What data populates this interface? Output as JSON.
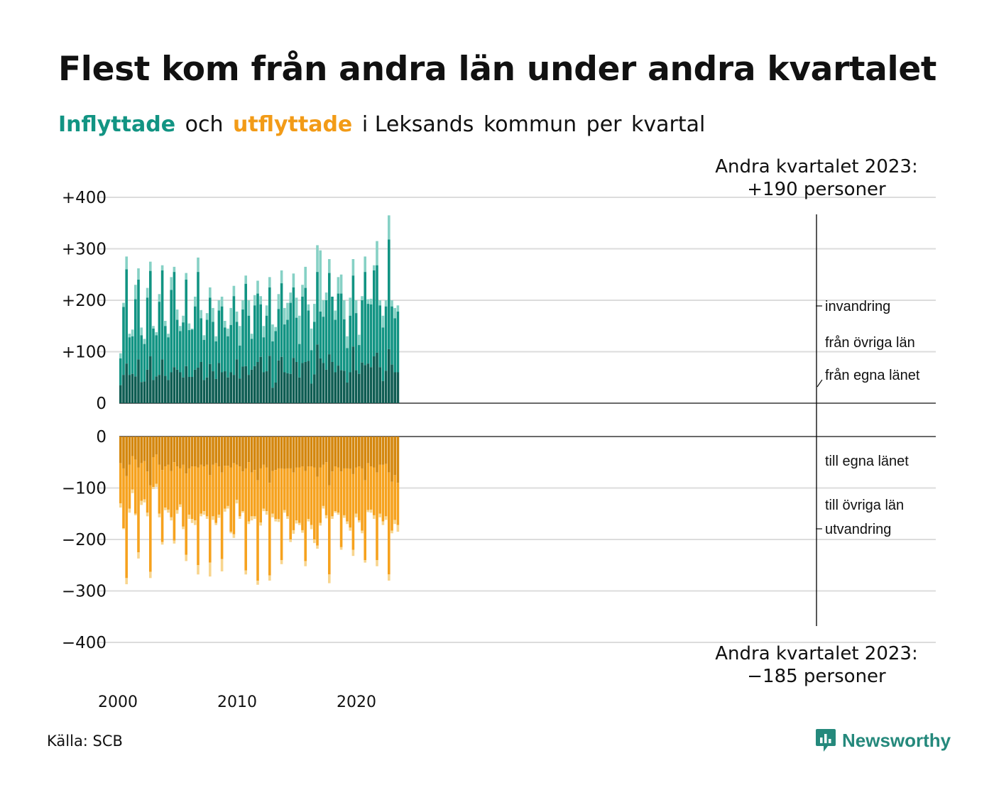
{
  "title": "Flest kom från andra län under andra kvartalet",
  "subtitle": {
    "part1": "Inflyttade",
    "part2": "och",
    "part3": "utflyttade",
    "part4": "i Leksands",
    "part5": "kommun",
    "part6": "per",
    "part7": "kvartal"
  },
  "source": "Källa: SCB",
  "brand": "Newsworthy",
  "colors": {
    "in_local": "#0f5d53",
    "in_other": "#129483",
    "in_immigration": "#86d1c5",
    "out_local": "#d4870e",
    "out_other": "#f6a21e",
    "out_emigration": "#f8d58e",
    "accent_in": "#129483",
    "accent_out": "#f29b17"
  },
  "chart_data": {
    "type": "bar",
    "stacked": true,
    "x_start": "2000 Q1",
    "x_end": "2023 Q2",
    "xticks": [
      "2000",
      "2010",
      "2020"
    ],
    "yticks_top": [
      "+400",
      "+300",
      "+200",
      "+100",
      "0"
    ],
    "yticks_bottom": [
      "0",
      "−100",
      "−200",
      "−300",
      "−400"
    ],
    "ylim_top": [
      0,
      400
    ],
    "ylim_bottom": [
      -400,
      0
    ],
    "grid": true,
    "legend_in": [
      "invandring",
      "från övriga län",
      "från egna länet"
    ],
    "legend_out": [
      "till egna länet",
      "till övriga län",
      "utvandring"
    ],
    "annotation_top": [
      "Andra kvartalet 2023:",
      "+190 personer"
    ],
    "annotation_bottom": [
      "Andra kvartalet 2023:",
      "−185 personer"
    ],
    "inflow_total": [
      97,
      195,
      285,
      135,
      143,
      230,
      262,
      147,
      125,
      224,
      275,
      150,
      138,
      212,
      268,
      160,
      135,
      245,
      265,
      182,
      150,
      170,
      253,
      155,
      145,
      207,
      283,
      181,
      132,
      175,
      225,
      185,
      130,
      200,
      207,
      160,
      145,
      185,
      228,
      178,
      150,
      200,
      248,
      200,
      135,
      210,
      238,
      208,
      150,
      190,
      245,
      153,
      148,
      212,
      258,
      185,
      195,
      215,
      252,
      205,
      170,
      230,
      265,
      192,
      145,
      193,
      307,
      297,
      200,
      215,
      280,
      200,
      180,
      245,
      250,
      200,
      130,
      205,
      280,
      200,
      133,
      208,
      285,
      202,
      203,
      268,
      315,
      200,
      170,
      200,
      365,
      200,
      185,
      190
    ],
    "inflow_other": [
      87,
      187,
      260,
      128,
      130,
      202,
      240,
      132,
      115,
      205,
      257,
      145,
      132,
      197,
      258,
      150,
      128,
      220,
      255,
      162,
      140,
      157,
      240,
      142,
      143,
      188,
      255,
      165,
      123,
      162,
      205,
      158,
      120,
      180,
      188,
      147,
      130,
      152,
      208,
      158,
      112,
      182,
      232,
      170,
      125,
      190,
      213,
      192,
      128,
      170,
      225,
      120,
      140,
      183,
      233,
      153,
      162,
      195,
      225,
      166,
      115,
      207,
      224,
      180,
      103,
      158,
      255,
      178,
      168,
      200,
      253,
      207,
      162,
      213,
      213,
      163,
      107,
      170,
      248,
      175,
      113,
      200,
      255,
      193,
      192,
      258,
      268,
      190,
      147,
      188,
      318,
      188,
      165,
      178
    ],
    "inflow_local": [
      35,
      55,
      77,
      55,
      57,
      52,
      85,
      41,
      42,
      65,
      91,
      45,
      52,
      55,
      85,
      53,
      45,
      60,
      70,
      65,
      60,
      50,
      72,
      51,
      51,
      65,
      69,
      80,
      45,
      50,
      76,
      62,
      47,
      78,
      60,
      62,
      50,
      60,
      55,
      85,
      48,
      71,
      72,
      55,
      65,
      72,
      80,
      90,
      60,
      62,
      92,
      30,
      40,
      83,
      90,
      60,
      58,
      57,
      88,
      80,
      50,
      78,
      80,
      82,
      38,
      56,
      114,
      87,
      78,
      65,
      95,
      80,
      60,
      73,
      64,
      63,
      40,
      60,
      110,
      64,
      57,
      79,
      74,
      77,
      70,
      91,
      98,
      70,
      43,
      63,
      105,
      75,
      60,
      60
    ],
    "outflow_total": [
      138,
      180,
      287,
      148,
      110,
      153,
      237,
      133,
      128,
      155,
      275,
      102,
      98,
      157,
      210,
      143,
      148,
      163,
      208,
      150,
      137,
      180,
      242,
      160,
      168,
      172,
      268,
      155,
      152,
      160,
      272,
      162,
      172,
      158,
      262,
      146,
      140,
      188,
      197,
      130,
      160,
      148,
      268,
      170,
      163,
      160,
      288,
      173,
      145,
      152,
      280,
      157,
      165,
      166,
      248,
      148,
      160,
      205,
      189,
      169,
      172,
      187,
      252,
      165,
      180,
      207,
      218,
      173,
      140,
      159,
      285,
      160,
      148,
      152,
      220,
      158,
      170,
      183,
      232,
      157,
      167,
      188,
      245,
      147,
      148,
      160,
      252,
      157,
      172,
      162,
      280,
      188,
      170,
      185
    ],
    "outflow_local": [
      52,
      62,
      77,
      55,
      38,
      45,
      60,
      52,
      48,
      68,
      95,
      40,
      35,
      55,
      65,
      58,
      55,
      67,
      50,
      58,
      62,
      55,
      72,
      62,
      58,
      58,
      60,
      55,
      58,
      55,
      75,
      55,
      52,
      58,
      70,
      57,
      57,
      60,
      52,
      55,
      58,
      68,
      62,
      50,
      70,
      65,
      85,
      62,
      55,
      60,
      90,
      67,
      65,
      62,
      62,
      63,
      62,
      62,
      70,
      60,
      60,
      58,
      67,
      58,
      58,
      60,
      78,
      60,
      55,
      50,
      95,
      68,
      58,
      60,
      68,
      62,
      62,
      63,
      73,
      60,
      58,
      62,
      85,
      52,
      58,
      60,
      70,
      55,
      55,
      53,
      70,
      88,
      75,
      90
    ],
    "outflow_other": [
      130,
      178,
      275,
      140,
      103,
      150,
      225,
      125,
      122,
      148,
      263,
      98,
      92,
      150,
      205,
      138,
      142,
      157,
      202,
      143,
      132,
      175,
      230,
      152,
      160,
      163,
      250,
      150,
      145,
      155,
      245,
      155,
      168,
      152,
      238,
      140,
      135,
      185,
      190,
      123,
      155,
      145,
      260,
      165,
      155,
      155,
      280,
      167,
      140,
      145,
      270,
      150,
      160,
      160,
      240,
      143,
      155,
      200,
      182,
      163,
      168,
      182,
      242,
      160,
      172,
      200,
      212,
      168,
      135,
      153,
      268,
      155,
      145,
      148,
      215,
      153,
      165,
      177,
      220,
      150,
      163,
      183,
      240,
      143,
      142,
      153,
      240,
      150,
      165,
      155,
      268,
      183,
      162,
      172
    ]
  }
}
